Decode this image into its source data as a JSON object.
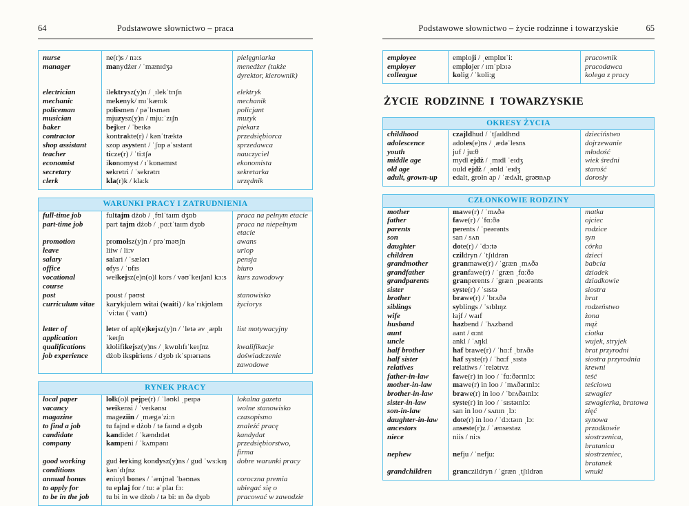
{
  "colors": {
    "table_border": "#5ec1e8",
    "section_bar_bg": "#cde9f7",
    "section_bar_text": "#0d9ad2",
    "rule": "#1f1f1f",
    "text": "#161616"
  },
  "pages": {
    "left": {
      "page_number": "64",
      "header_title": "Podstawowe słownictwo – praca",
      "tables": [
        {
          "header": null,
          "rows": [
            [
              "nurse",
              "ne(r)s / nɜ:s",
              "pielęgniarka"
            ],
            [
              "manager",
              "**ma**nydżer / ˈmænɪdʒə",
              "menedżer (także dyrektor, kierownik)"
            ],
            null,
            [
              "electrician",
              "ile**ktry**sz(y)n / ˌɪlekˈtrɪʃn",
              "elektryk"
            ],
            [
              "mechanic",
              "me**ke**nyk/ mɪˈkænɪk",
              "mechanik"
            ],
            [
              "policeman",
              "po**lis**men / pəˈlɪsmən",
              "policjant"
            ],
            [
              "musician",
              "mju**zy**sz(y)n / mju:ˈzɪʃn",
              "muzyk"
            ],
            [
              "baker",
              "**bej**ker / ˈbeɪkə",
              "piekarz"
            ],
            [
              "contractor",
              "kon**tra**kte(r) / kənˈtræktə",
              "przedsiębiorca"
            ],
            [
              "shop assistant",
              "szop a**sys**tent / ˈʃɒp əˈsɪstənt",
              "sprzedawca"
            ],
            [
              "teacher",
              "**ti**cze(r) / ˈti:tʃə",
              "nauczyciel"
            ],
            [
              "economist",
              "i**ko**nomyst / ɪˈkɒnəmɪst",
              "ekonomista"
            ],
            [
              "secretary",
              "**se**kretri / ˈsekrətrɪ",
              "sekretarka"
            ],
            [
              "clerk",
              "**kla**(r)k / kla:k",
              "urzędnik"
            ]
          ]
        },
        {
          "header": "WARUNKI PRACY I ZATRUDNIENIA",
          "rows": [
            [
              "full-time job",
              "ful**tajm** dżob / ˌfʊlˈtaɪm dʒɒb",
              "praca na pełnym etacie"
            ],
            [
              "part-time job",
              "part **tajm** dżob / ˌpɑ:tˈtaɪm dʒɒb",
              "praca na niepełnym etacie"
            ],
            [
              "promotion",
              "pro**moł**sz(y)n / prəˈməʊʃn",
              "awans"
            ],
            [
              "leave",
              "liiw / li:v",
              "urlop"
            ],
            [
              "salary",
              "**sa**lari / ˈsælərɪ",
              "pensja"
            ],
            [
              "office",
              "**o**fys / ˈɒfɪs",
              "biuro"
            ],
            [
              "vocational course",
              "weł**kej**sz(e)n(o)l kors / vəʊˈkeɪʃənl kɔ:s",
              "kurs zawodowy"
            ],
            [
              "post",
              "poust / pəʊst",
              "stanowisko"
            ],
            [
              "curriculum vitae",
              "ka**ry**kjulem **wi**tai (**wai**ti) / kəˈrɪkjʊləm ˈvi:taɪ (ˈvaɪtɪ)",
              "życiorys"
            ],
            null,
            [
              "letter of application",
              "**le**ter of apl(e)**kej**sz(y)n / ˈletə əv ˌæplɪˈkeɪʃn",
              "list motywacyjny"
            ],
            [
              "qualifications",
              "kłolifi**kej**sz(y)ns / ˌkwɒlɪfɪˈkeɪʃnz",
              "kwalifikacje"
            ],
            [
              "job experience",
              "dżob iks**pi**riens / dʒɒb ɪkˈspɪərɪəns",
              "doświadczenie zawodowe"
            ]
          ]
        },
        {
          "header": "RYNEK PRACY",
          "rows": [
            [
              "local paper",
              "**loł**k(o)l **pej**pe(r) / ˈləʊkl ˌpeɪpə",
              "lokalna gazeta"
            ],
            [
              "vacancy",
              "**wei**kensi / ˈveɪkənsɪ",
              "wolne stanowisko"
            ],
            [
              "magazine",
              "mage**ziin** / ˌmægəˈzi:n",
              "czasopismo"
            ],
            [
              "to find a job",
              "tu fajnd e dżob / tə faɪnd ə dʒɒb",
              "znaleźć pracę"
            ],
            [
              "candidate",
              "**kan**didet / ˈkændɪdət",
              "kandydat"
            ],
            [
              "company",
              "**kam**peni / ˈkʌmpənɪ",
              "przedsiębiorstwo, firma"
            ],
            [
              "good working conditions",
              "gud **łer**king kon**dy**sz(y)ns / gud ˈwɜ:kɪŋ kənˈdɪʃnz",
              "dobre warunki pracy"
            ],
            [
              "annual bonus",
              "**e**niuyl **bo**nes / ˈænjʊəl ˈbəʊnəs",
              "coroczna premia"
            ],
            [
              "to apply for",
              "tu e**plaj** for / tu: əˈplaɪ fɔ:",
              "ubiegać się o"
            ],
            [
              "to be in the job",
              "tu bi in we dżob / tə bi: ɪn ðə dʒɒb",
              "pracować w zawodzie"
            ]
          ]
        }
      ]
    },
    "right": {
      "page_number": "65",
      "header_title": "Podstawowe słownictwo – życie rodzinne i towarzyskie",
      "section_heading": "ŻYCIE RODZINNE I TOWARZYSKIE",
      "top_tables": [
        {
          "header": null,
          "rows": [
            [
              "employee",
              "emplo**ji** / ˌemplɒɪˈi:",
              "pracownik"
            ],
            [
              "employer",
              "emp**lo**jer / ɪmˈplɔɪə",
              "pracodawca"
            ],
            [
              "colleague",
              "**ko**lig / ˈkɒli:g",
              "kolega z pracy"
            ]
          ]
        }
      ],
      "tables": [
        {
          "header": "OKRESY ŻYCIA",
          "rows": [
            [
              "childhood",
              "**czajld**hud / ˈtʃaɪldhʊd",
              "dzieciństwo"
            ],
            [
              "adolescence",
              "adol**es**(e)ns / ˌædəˈlesns",
              "dojrzewanie"
            ],
            [
              "youth",
              "juf / ju:θ",
              "młodość"
            ],
            [
              "middle age",
              "mydl **ejdż** / ˌmɪdl ˈeɪdʒ",
              "wiek średni"
            ],
            [
              "old age",
              "ould **ejdż** / ˌəʊld ˈeɪdʒ",
              "starość"
            ],
            [
              "adult, grown-up",
              "**e**dalt, grołn ap / ˈædʌlt, grəʊnʌp",
              "dorosły"
            ]
          ]
        },
        {
          "header": "CZŁONKOWIE RODZINY",
          "rows": [
            [
              "mother",
              "**ma**we(r) / ˈmʌðə",
              "matka"
            ],
            [
              "father",
              "**fa**we(r) / ˈfɑ:ðə",
              "ojciec"
            ],
            [
              "parents",
              "**pe**rents / ˈpeərənts",
              "rodzice"
            ],
            [
              "son",
              "san / sʌn",
              "syn"
            ],
            [
              "daughter",
              "**do**te(r) / ˈdɔ:tə",
              "córka"
            ],
            [
              "children",
              "**czil**dryn / ˈtʃɪldrən",
              "dzieci"
            ],
            [
              "grandmother",
              "**gran**mawe(r) / ˈgræn ˌmʌðə",
              "babcia"
            ],
            [
              "grandfather",
              "**gran**fawe(r) / ˈgræn ˌfɑ:ðə",
              "dziadek"
            ],
            [
              "grandparents",
              "**gran**perents / ˈgræn ˌpeərənts",
              "dziadkowie"
            ],
            [
              "sister",
              "**sys**te(r) / ˈsɪstə",
              "siostra"
            ],
            [
              "brother",
              "**bra**we(r) / ˈbrʌðə",
              "brat"
            ],
            [
              "siblings",
              "**sy**blings / ˈsɪblɪŋz",
              "rodzeństwo"
            ],
            [
              "wife",
              "łajf / waɪf",
              "żona"
            ],
            [
              "husband",
              "**haz**bend / ˈhʌzbənd",
              "mąż"
            ],
            [
              "aunt",
              "aant / ɑ:nt",
              "ciotka"
            ],
            [
              "uncle",
              "ankl / ˈʌŋkl",
              "wujek, stryjek"
            ],
            [
              "half brother",
              "**haf** brawe(r) / ˈhɑ:f ˌbrʌðə",
              "brat przyrodni"
            ],
            [
              "half sister",
              "**haf** syste(r) / ˈhɑ:f ˌsɪstə",
              "siostra przyrodnia"
            ],
            [
              "relatives",
              "**re**latiws / ˈrelətɪvz",
              "krewni"
            ],
            [
              "father-in-law",
              "**fa**we(r) in loo / ˈfɑ:ðərɪnlɔ:",
              "teść"
            ],
            [
              "mother-in-law",
              "**ma**we(r) in loo / ˈmʌðərɪnlɔ:",
              "teściowa"
            ],
            [
              "brother-in-law",
              "**bra**we(r) in loo / ˈbrʌðəɪnlɔ:",
              "szwagier"
            ],
            [
              "sister-in-law",
              "**sys**te(r) in loo / ˈsɪstəɪnlɔ:",
              "szwagierka, bratowa"
            ],
            [
              "son-in-law",
              "san in loo / sʌnɪn ˌlɔ:",
              "zięć"
            ],
            [
              "daughter-in-law",
              "**do**te(r) in loo / ˈdɔ:təɪn ˌlɔ:",
              "synowa"
            ],
            [
              "ancestors",
              "an**ses**te(r)z / ˈænsestəz",
              "przodkowie"
            ],
            [
              "niece",
              "niis / ni:s",
              "siostrzenica, bratanica"
            ],
            [
              "nephew",
              "**ne**fju / ˈnefju:",
              "siostrzeniec, bratanek"
            ],
            [
              "grandchildren",
              "**gran**czildryn / ˈgræn ˌtʃɪldrən",
              "wnuki"
            ]
          ]
        }
      ]
    }
  }
}
